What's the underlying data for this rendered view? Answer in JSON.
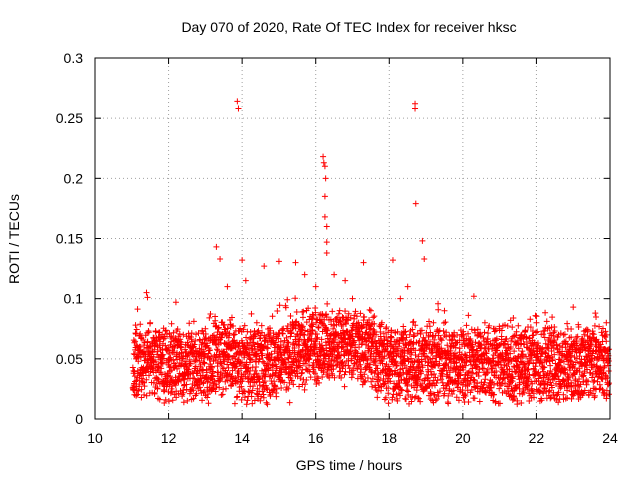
{
  "chart_data": {
    "type": "scatter",
    "title": "Day 070 of 2020, Rate Of TEC Index for receiver hksc",
    "xlabel": "GPS time / hours",
    "ylabel": "ROTI / TECUs",
    "xlim": [
      10,
      24
    ],
    "ylim": [
      0,
      0.3
    ],
    "grid": true,
    "marker": "+",
    "color": "#ff0000",
    "x_ticks": [
      10,
      12,
      14,
      16,
      18,
      20,
      22,
      24
    ],
    "x_tick_labels": [
      "10",
      "12",
      "14",
      "16",
      "18",
      "20",
      "22",
      "24"
    ],
    "y_ticks": [
      0,
      0.05,
      0.1,
      0.15,
      0.2,
      0.25,
      0.3
    ],
    "y_tick_labels": [
      "0",
      "0.05",
      "0.1",
      "0.15",
      "0.2",
      "0.25",
      "0.3"
    ],
    "series": [
      {
        "name": "ROTI",
        "points": [
          [
            11.05,
            0.04
          ],
          [
            11.2,
            0.055
          ],
          [
            11.4,
            0.105
          ],
          [
            11.5,
            0.08
          ],
          [
            11.7,
            0.06
          ],
          [
            12.0,
            0.045
          ],
          [
            12.2,
            0.097
          ],
          [
            12.4,
            0.07
          ],
          [
            12.7,
            0.055
          ],
          [
            13.0,
            0.075
          ],
          [
            13.3,
            0.143
          ],
          [
            13.4,
            0.133
          ],
          [
            13.6,
            0.11
          ],
          [
            13.87,
            0.264
          ],
          [
            13.9,
            0.258
          ],
          [
            14.0,
            0.132
          ],
          [
            14.1,
            0.115
          ],
          [
            14.4,
            0.08
          ],
          [
            14.6,
            0.127
          ],
          [
            15.0,
            0.131
          ],
          [
            15.2,
            0.06
          ],
          [
            15.45,
            0.13
          ],
          [
            15.7,
            0.12
          ],
          [
            16.0,
            0.11
          ],
          [
            16.2,
            0.218
          ],
          [
            16.22,
            0.213
          ],
          [
            16.25,
            0.21
          ],
          [
            16.27,
            0.2
          ],
          [
            16.25,
            0.185
          ],
          [
            16.25,
            0.168
          ],
          [
            16.3,
            0.16
          ],
          [
            16.3,
            0.147
          ],
          [
            16.3,
            0.138
          ],
          [
            16.5,
            0.12
          ],
          [
            16.8,
            0.115
          ],
          [
            17.0,
            0.1
          ],
          [
            17.3,
            0.13
          ],
          [
            17.5,
            0.09
          ],
          [
            17.8,
            0.08
          ],
          [
            18.1,
            0.132
          ],
          [
            18.3,
            0.1
          ],
          [
            18.5,
            0.11
          ],
          [
            18.7,
            0.262
          ],
          [
            18.7,
            0.258
          ],
          [
            18.72,
            0.179
          ],
          [
            18.9,
            0.148
          ],
          [
            18.95,
            0.133
          ],
          [
            19.2,
            0.08
          ],
          [
            19.5,
            0.09
          ],
          [
            20.0,
            0.07
          ],
          [
            20.3,
            0.102
          ],
          [
            20.6,
            0.08
          ],
          [
            21.0,
            0.075
          ],
          [
            21.3,
            0.082
          ],
          [
            21.6,
            0.07
          ],
          [
            22.0,
            0.08
          ],
          [
            22.3,
            0.075
          ],
          [
            22.6,
            0.07
          ],
          [
            23.0,
            0.093
          ],
          [
            23.3,
            0.07
          ],
          [
            23.6,
            0.088
          ],
          [
            23.9,
            0.08
          ],
          [
            23.95,
            0.05
          ]
        ]
      }
    ]
  }
}
